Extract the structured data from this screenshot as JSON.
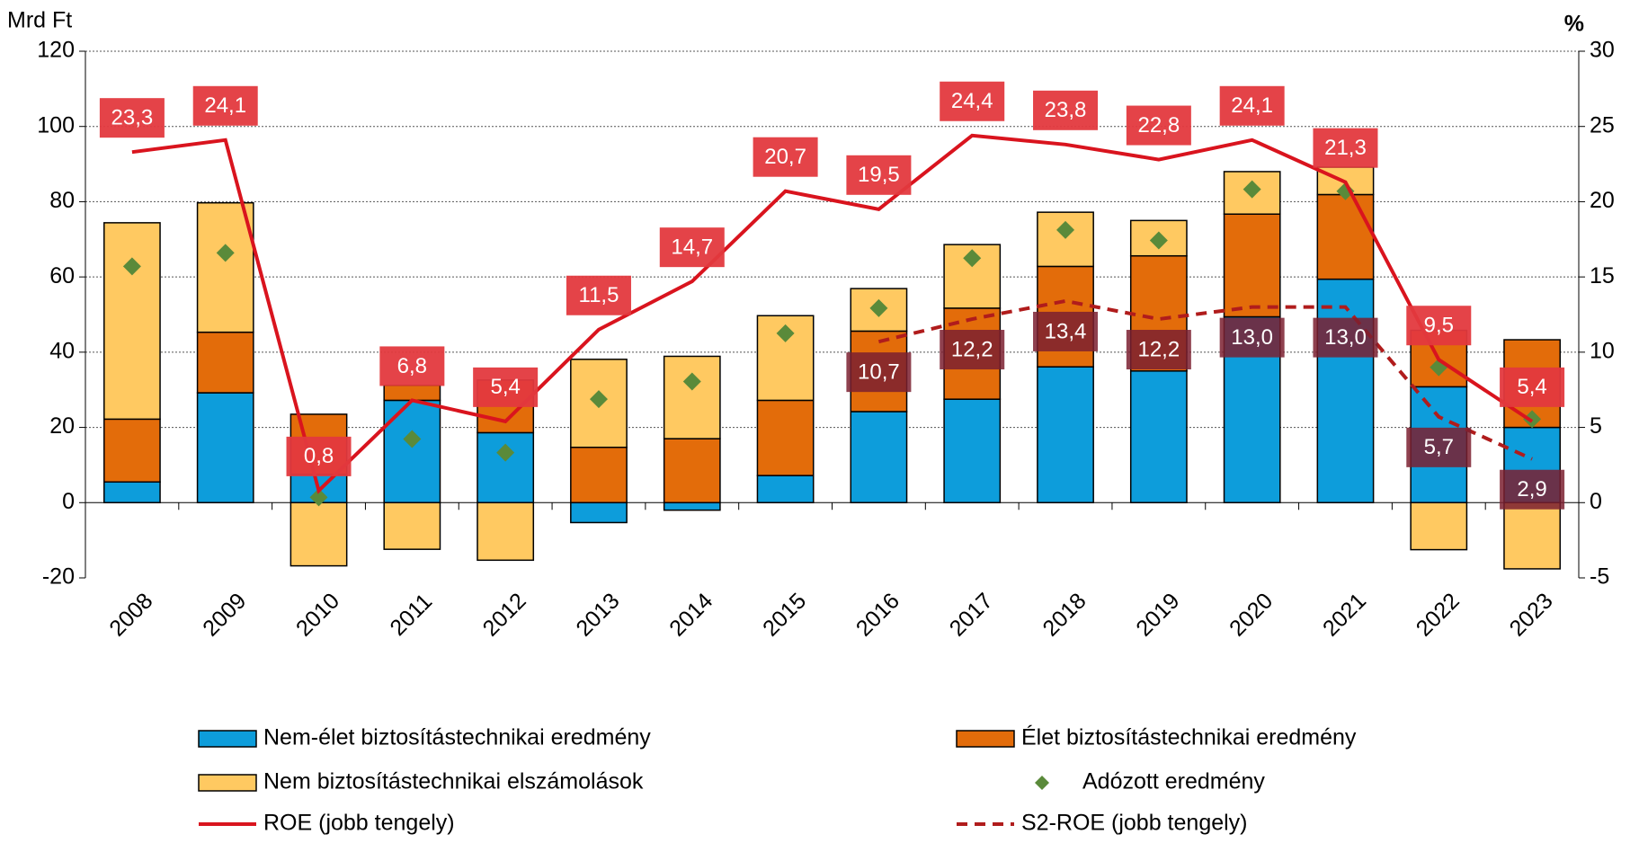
{
  "chart_data": {
    "type": "bar",
    "y_label": "Mrd Ft",
    "y2_label": "%",
    "categories": [
      "2008",
      "2009",
      "2010",
      "2011",
      "2012",
      "2013",
      "2014",
      "2015",
      "2016",
      "2017",
      "2018",
      "2019",
      "2020",
      "2021",
      "2022",
      "2023"
    ],
    "ylim": [
      -20,
      120
    ],
    "yticks": [
      -20,
      0,
      20,
      40,
      60,
      80,
      100,
      120
    ],
    "y2lim": [
      -5,
      30
    ],
    "y2ticks": [
      -5,
      0,
      5,
      10,
      15,
      20,
      25,
      30
    ],
    "grid": true,
    "series": [
      {
        "name": "Nem-élet biztosítástechnikai eredmény",
        "type": "bar",
        "color": "#0d9ddb",
        "values": [
          5.5,
          29.2,
          7.5,
          27.2,
          18.6,
          -5.3,
          -2,
          7.2,
          24.2,
          27.5,
          36.1,
          35,
          49.4,
          59.4,
          30.8,
          20
        ]
      },
      {
        "name": "Élet biztosítástechnikai eredmény",
        "type": "bar",
        "color": "#e36c0a",
        "values": [
          16.7,
          16.1,
          16,
          4,
          14,
          14.7,
          17,
          20,
          21.4,
          24.2,
          26.7,
          30.6,
          27.3,
          22.5,
          15,
          23.3
        ]
      },
      {
        "name": "Nem biztosítástechnikai elszámolások",
        "type": "bar",
        "color": "#ffc961",
        "values": [
          52.2,
          34.4,
          -16.8,
          -12.4,
          -15.3,
          23.4,
          21.9,
          22.5,
          11.3,
          16.9,
          14.4,
          9.4,
          11.3,
          7.3,
          -12.5,
          -17.6
        ]
      },
      {
        "name": "Adózott eredmény",
        "type": "scatter",
        "color": "#5a8a3a",
        "values": [
          62.8,
          66.4,
          1.4,
          16.9,
          13.3,
          27.5,
          32.2,
          45,
          51.7,
          65,
          72.5,
          69.7,
          83.3,
          82.8,
          36,
          22.2
        ]
      },
      {
        "name": "ROE (jobb tengely)",
        "type": "line",
        "axis": "y2",
        "color": "#d9141e",
        "linestyle": "solid",
        "label_color": "#e3393e",
        "values": [
          23.3,
          24.1,
          0.8,
          6.8,
          5.4,
          11.5,
          14.7,
          20.7,
          19.5,
          24.4,
          23.8,
          22.8,
          24.1,
          21.3,
          9.5,
          5.4
        ],
        "value_labels": [
          "23,3",
          "24,1",
          "0,8",
          "6,8",
          "5,4",
          "11,5",
          "14,7",
          "20,7",
          "19,5",
          "24,4",
          "23,8",
          "22,8",
          "24,1",
          "21,3",
          "9,5",
          "5,4"
        ]
      },
      {
        "name": "S2-ROE (jobb tengely)",
        "type": "line",
        "axis": "y2",
        "color": "#b01c1c",
        "linestyle": "dashed",
        "label_color": "#7b2030",
        "values": [
          null,
          null,
          null,
          null,
          null,
          null,
          null,
          null,
          10.7,
          12.2,
          13.4,
          12.2,
          13.0,
          13.0,
          5.7,
          2.9
        ],
        "value_labels": [
          null,
          null,
          null,
          null,
          null,
          null,
          null,
          null,
          "10,7",
          "12,2",
          "13,4",
          "12,2",
          "13,0",
          "13,0",
          "5,7",
          "2,9"
        ]
      }
    ]
  }
}
